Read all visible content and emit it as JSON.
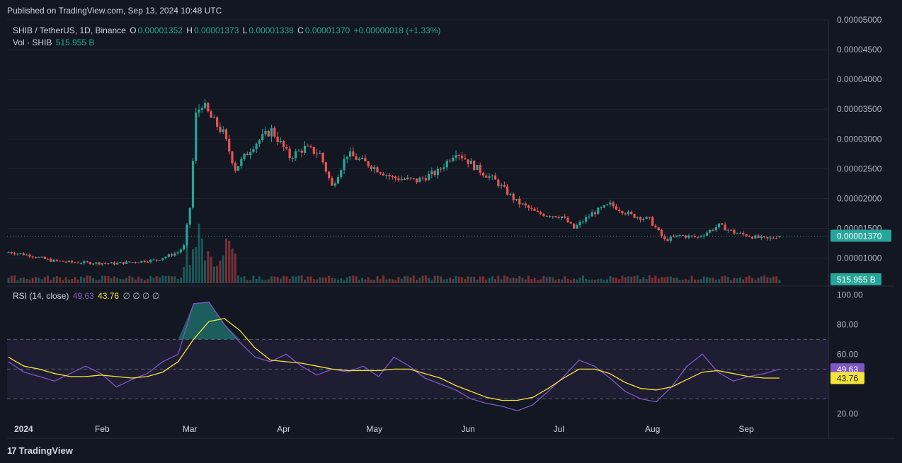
{
  "header": {
    "published": "Published on TradingView.com, Sep 13, 2024 10:48 UTC"
  },
  "legend": {
    "symbol": "SHIB / TetherUS, 1D, Binance",
    "o_label": "O",
    "o_value": "0.00001352",
    "h_label": "H",
    "h_value": "0.00001373",
    "l_label": "L",
    "l_value": "0.00001338",
    "c_label": "C",
    "c_value": "0.00001370",
    "change": "+0.00000018 (+1.33%)",
    "vol_label": "Vol · SHIB",
    "vol_value": "515.955 B",
    "rsi_label": "RSI (14, close)",
    "rsi_value": "49.63",
    "rsi_ma_value": "43.76",
    "rsi_extra": "∅ ∅ ∅ ∅"
  },
  "footer": {
    "brand": "TradingView"
  },
  "colors": {
    "up": "#26a69a",
    "down": "#ef5350",
    "rsi": "#7e57c2",
    "rsi_ma": "#f5e33b",
    "bg": "#131722"
  },
  "chart_data": [
    {
      "type": "candlestick",
      "title": "SHIB / TetherUS, 1D, Binance",
      "x_ticks": [
        "2024",
        "Feb",
        "Mar",
        "Apr",
        "May",
        "Jun",
        "Jul",
        "Aug",
        "Sep"
      ],
      "price_ticks": [
        "0.00005000",
        "0.00004500",
        "0.00004000",
        "0.00003500",
        "0.00003000",
        "0.00002500",
        "0.00002000",
        "0.00001500",
        "0.00001000"
      ],
      "ylim": [
        5.8e-06,
        5e-05
      ],
      "last_price": "0.00001370",
      "last_volume": "515.955 B",
      "close_keypoints": [
        [
          "2024-01-01",
          1.1e-05
        ],
        [
          "2024-01-08",
          1.05e-05
        ],
        [
          "2024-01-15",
          9.6e-06
        ],
        [
          "2024-01-22",
          9.3e-06
        ],
        [
          "2024-01-29",
          9.2e-06
        ],
        [
          "2024-02-05",
          9.1e-06
        ],
        [
          "2024-02-12",
          9.4e-06
        ],
        [
          "2024-02-19",
          9.7e-06
        ],
        [
          "2024-02-26",
          1.1e-05
        ],
        [
          "2024-02-28",
          1.2e-05
        ],
        [
          "2024-03-01",
          1.85e-05
        ],
        [
          "2024-03-03",
          3.4e-05
        ],
        [
          "2024-03-05",
          3.6e-05
        ],
        [
          "2024-03-08",
          3.35e-05
        ],
        [
          "2024-03-12",
          3.1e-05
        ],
        [
          "2024-03-16",
          2.5e-05
        ],
        [
          "2024-03-22",
          2.9e-05
        ],
        [
          "2024-03-28",
          3.15e-05
        ],
        [
          "2024-04-03",
          2.7e-05
        ],
        [
          "2024-04-08",
          2.85e-05
        ],
        [
          "2024-04-13",
          2.75e-05
        ],
        [
          "2024-04-17",
          2.2e-05
        ],
        [
          "2024-04-22",
          2.75e-05
        ],
        [
          "2024-04-30",
          2.55e-05
        ],
        [
          "2024-05-07",
          2.35e-05
        ],
        [
          "2024-05-15",
          2.3e-05
        ],
        [
          "2024-05-22",
          2.45e-05
        ],
        [
          "2024-05-28",
          2.8e-05
        ],
        [
          "2024-06-04",
          2.5e-05
        ],
        [
          "2024-06-10",
          2.3e-05
        ],
        [
          "2024-06-17",
          1.95e-05
        ],
        [
          "2024-06-24",
          1.75e-05
        ],
        [
          "2024-07-02",
          1.7e-05
        ],
        [
          "2024-07-06",
          1.5e-05
        ],
        [
          "2024-07-12",
          1.75e-05
        ],
        [
          "2024-07-18",
          1.9e-05
        ],
        [
          "2024-07-25",
          1.72e-05
        ],
        [
          "2024-07-31",
          1.65e-05
        ],
        [
          "2024-08-05",
          1.3e-05
        ],
        [
          "2024-08-10",
          1.38e-05
        ],
        [
          "2024-08-16",
          1.35e-05
        ],
        [
          "2024-08-23",
          1.55e-05
        ],
        [
          "2024-08-28",
          1.43e-05
        ],
        [
          "2024-09-04",
          1.35e-05
        ],
        [
          "2024-09-08",
          1.32e-05
        ],
        [
          "2024-09-12",
          1.37e-05
        ]
      ]
    },
    {
      "type": "line",
      "title": "RSI (14, close)",
      "y_ticks": [
        "100.00",
        "80.00",
        "60.00",
        "20.00"
      ],
      "ylim": [
        14,
        103
      ],
      "bands": {
        "upper": 70,
        "middle": 50,
        "lower": 30
      },
      "series": [
        {
          "name": "RSI",
          "last": "49.63",
          "values": [
            55,
            48,
            45,
            42,
            47,
            52,
            47,
            38,
            43,
            47,
            55,
            60,
            94,
            95,
            80,
            68,
            58,
            55,
            60,
            52,
            46,
            50,
            48,
            52,
            45,
            58,
            52,
            44,
            40,
            36,
            30,
            27,
            25,
            22,
            26,
            35,
            45,
            56,
            52,
            44,
            35,
            30,
            28,
            38,
            52,
            60,
            48,
            42,
            45,
            47,
            50
          ]
        },
        {
          "name": "MA",
          "last": "43.76",
          "values": [
            58,
            52,
            50,
            47,
            45,
            45,
            46,
            45,
            44,
            45,
            48,
            55,
            70,
            82,
            84,
            76,
            64,
            56,
            55,
            54,
            52,
            50,
            49,
            49,
            49,
            50,
            50,
            47,
            44,
            39,
            35,
            31,
            29,
            29,
            31,
            37,
            44,
            50,
            50,
            47,
            41,
            37,
            36,
            38,
            43,
            48,
            49,
            47,
            45,
            44,
            44
          ]
        }
      ]
    }
  ]
}
